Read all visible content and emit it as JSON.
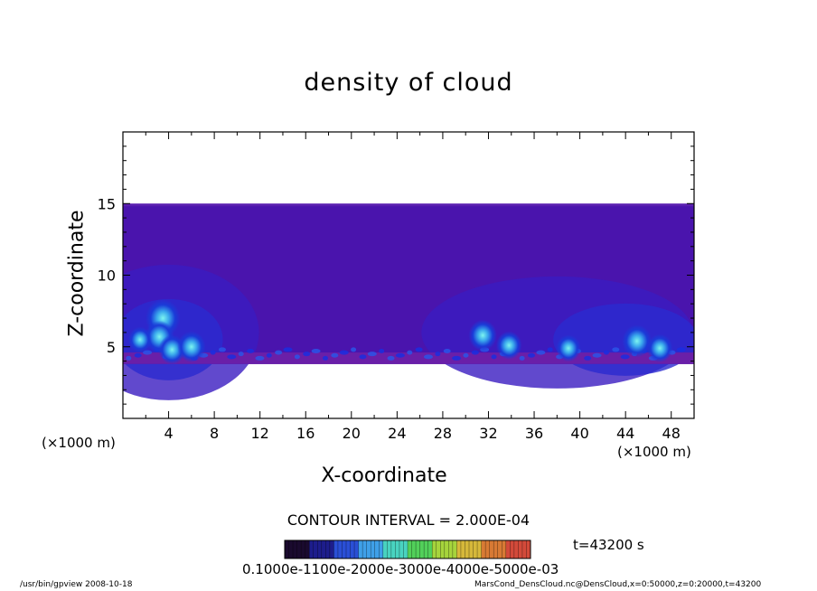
{
  "chart_data": {
    "type": "heatmap",
    "title": "density of cloud",
    "xlabel": "X-coordinate",
    "ylabel": "Z-coordinate",
    "x_unit_left": "(×1000 m)",
    "x_unit_right": "(×1000 m)",
    "xlim": [
      0,
      50
    ],
    "ylim": [
      0,
      20
    ],
    "xticks": [
      4,
      8,
      12,
      16,
      20,
      24,
      28,
      32,
      36,
      40,
      44,
      48
    ],
    "yticks": [
      5,
      10,
      15
    ],
    "field_z_range": [
      3.8,
      15
    ],
    "cloud_cells": [
      {
        "x": 3.5,
        "z": 7.0,
        "intensity": 0.8
      },
      {
        "x": 3.2,
        "z": 5.7,
        "intensity": 0.6
      },
      {
        "x": 4.3,
        "z": 4.8,
        "intensity": 0.5
      },
      {
        "x": 6.0,
        "z": 5.0,
        "intensity": 0.55
      },
      {
        "x": 1.5,
        "z": 5.5,
        "intensity": 0.35
      },
      {
        "x": 31.5,
        "z": 5.8,
        "intensity": 0.55
      },
      {
        "x": 33.8,
        "z": 5.1,
        "intensity": 0.45
      },
      {
        "x": 39.0,
        "z": 4.9,
        "intensity": 0.4
      },
      {
        "x": 45.0,
        "z": 5.4,
        "intensity": 0.6
      },
      {
        "x": 47.0,
        "z": 4.9,
        "intensity": 0.45
      }
    ],
    "contour_interval": "CONTOUR INTERVAL = 2.000E-04",
    "colorbar": {
      "tick_text": "0.1000e-1100e-2000e-3000e-4000e-5000e-03",
      "colors": [
        "#1a0a2e",
        "#1d1d8c",
        "#2a4fd6",
        "#3fa0e8",
        "#49d3c0",
        "#52d05a",
        "#a6d43c",
        "#d6b83a",
        "#d87a34",
        "#d34a3a"
      ]
    },
    "time_label": "t=43200 s"
  },
  "footer": {
    "left": "/usr/bin/gpview   2008-10-18",
    "right": "MarsCond_DensCloud.nc@DensCloud,x=0:50000,z=0:20000,t=43200"
  }
}
